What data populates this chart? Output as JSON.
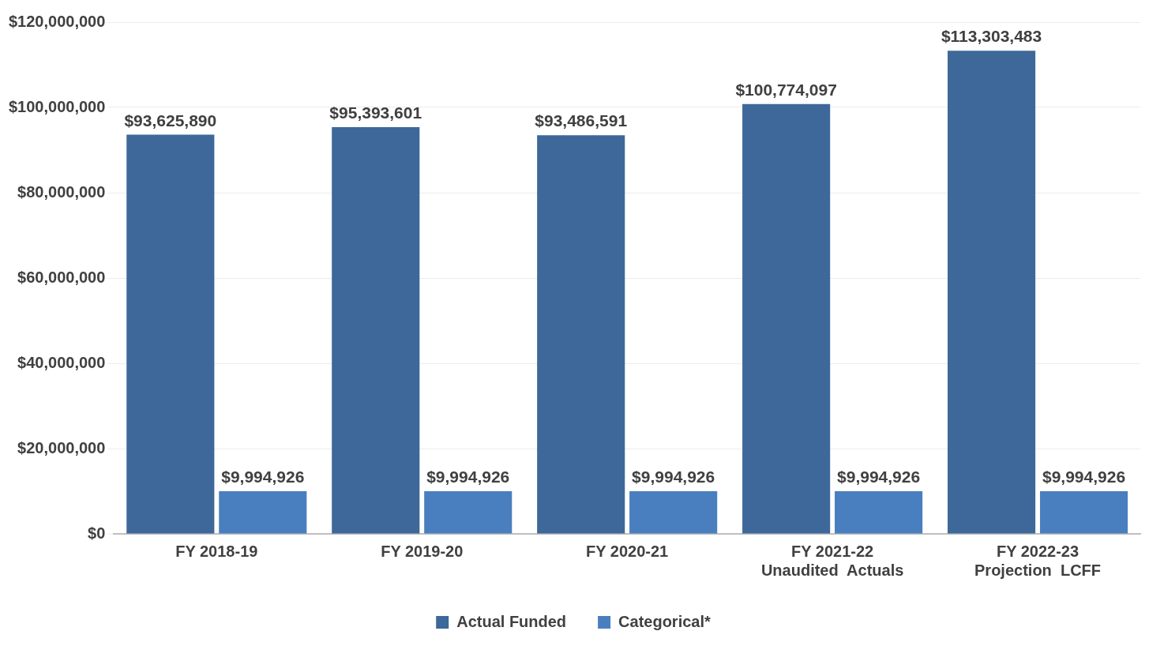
{
  "chart_data": {
    "type": "bar",
    "categories": [
      "FY 2018-19",
      "FY 2019-20",
      "FY 2020-21",
      "FY 2021-22\nUnaudited  Actuals",
      "FY 2022-23\nProjection  LCFF"
    ],
    "series": [
      {
        "name": "Actual Funded",
        "color": "#3d6899",
        "values": [
          93625890,
          95393601,
          93486591,
          100774097,
          113303483
        ],
        "value_labels": [
          "$93,625,890",
          "$95,393,601",
          "$93,486,591",
          "$100,774,097",
          "$113,303,483"
        ]
      },
      {
        "name": "Categorical*",
        "color": "#4a7fbf",
        "values": [
          9994926,
          9994926,
          9994926,
          9994926,
          9994926
        ],
        "value_labels": [
          "$9,994,926",
          "$9,994,926",
          "$9,994,926",
          "$9,994,926",
          "$9,994,926"
        ]
      }
    ],
    "ylim": [
      0,
      120000000
    ],
    "yticks": [
      {
        "value": 0,
        "label": "$0"
      },
      {
        "value": 20000000,
        "label": "$20,000,000"
      },
      {
        "value": 40000000,
        "label": "$40,000,000"
      },
      {
        "value": 60000000,
        "label": "$60,000,000"
      },
      {
        "value": 80000000,
        "label": "$80,000,000"
      },
      {
        "value": 100000000,
        "label": "$100,000,000"
      },
      {
        "value": 120000000,
        "label": "$120,000,000"
      }
    ],
    "grid": "y",
    "legend": "bottom"
  }
}
